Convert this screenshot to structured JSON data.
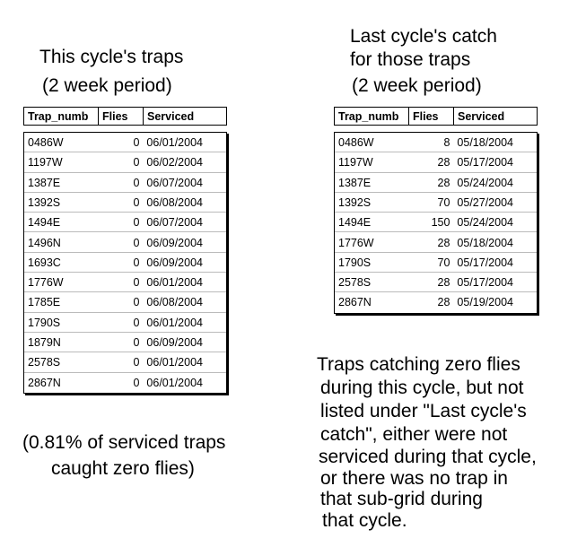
{
  "left": {
    "title": [
      "This cycle's traps",
      "(2 week period)"
    ],
    "table": {
      "headers": [
        "Trap_numb",
        "Flies",
        "Serviced"
      ],
      "rows": [
        [
          "0486W",
          0,
          "06/01/2004"
        ],
        [
          "1197W",
          0,
          "06/02/2004"
        ],
        [
          "1387E",
          0,
          "06/07/2004"
        ],
        [
          "1392S",
          0,
          "06/08/2004"
        ],
        [
          "1494E",
          0,
          "06/07/2004"
        ],
        [
          "1496N",
          0,
          "06/09/2004"
        ],
        [
          "1693C",
          0,
          "06/09/2004"
        ],
        [
          "1776W",
          0,
          "06/01/2004"
        ],
        [
          "1785E",
          0,
          "06/08/2004"
        ],
        [
          "1790S",
          0,
          "06/01/2004"
        ],
        [
          "1879N",
          0,
          "06/09/2004"
        ],
        [
          "2578S",
          0,
          "06/01/2004"
        ],
        [
          "2867N",
          0,
          "06/01/2004"
        ]
      ]
    },
    "note": [
      "(0.81% of serviced traps",
      "caught zero flies)"
    ]
  },
  "right": {
    "title": [
      "Last cycle's catch",
      "for those traps",
      "(2 week period)"
    ],
    "table": {
      "headers": [
        "Trap_numb",
        "Flies",
        "Serviced"
      ],
      "rows": [
        [
          "0486W",
          8,
          "05/18/2004"
        ],
        [
          "1197W",
          28,
          "05/17/2004"
        ],
        [
          "1387E",
          28,
          "05/24/2004"
        ],
        [
          "1392S",
          70,
          "05/27/2004"
        ],
        [
          "1494E",
          150,
          "05/24/2004"
        ],
        [
          "1776W",
          28,
          "05/18/2004"
        ],
        [
          "1790S",
          70,
          "05/17/2004"
        ],
        [
          "2578S",
          28,
          "05/17/2004"
        ],
        [
          "2867N",
          28,
          "05/19/2004"
        ]
      ]
    },
    "note": [
      "Traps catching zero flies",
      "during this cycle, but not",
      "listed under \"Last cycle's",
      "catch\", either were not",
      "serviced during that cycle,",
      "or there was no trap in",
      "that sub-grid during",
      "that cycle."
    ]
  }
}
